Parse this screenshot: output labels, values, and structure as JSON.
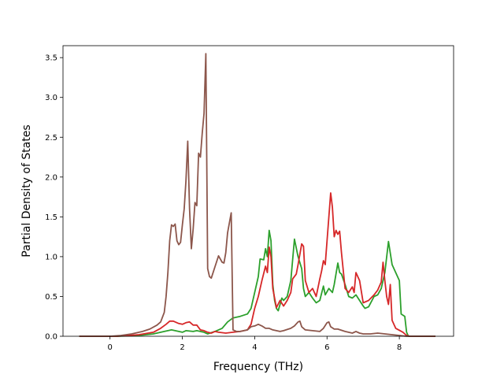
{
  "chart_data": {
    "type": "line",
    "title": "",
    "xlabel": "Frequency (THz)",
    "ylabel": "Partial Density of States",
    "xlim": [
      -1.3,
      9.5
    ],
    "ylim": [
      0,
      3.65
    ],
    "xticks": [
      0,
      2,
      4,
      6,
      8
    ],
    "xtick_labels": [
      "0",
      "2",
      "4",
      "6",
      "8"
    ],
    "yticks": [
      0.0,
      0.5,
      1.0,
      1.5,
      2.0,
      2.5,
      3.0,
      3.5
    ],
    "ytick_labels": [
      "0.0",
      "0.5",
      "1.0",
      "1.5",
      "2.0",
      "2.5",
      "3.0",
      "3.5"
    ],
    "grid": false,
    "legend": "none",
    "series": [
      {
        "color": "#2ca02c",
        "points": [
          [
            -0.85,
            0
          ],
          [
            0.2,
            0
          ],
          [
            0.8,
            0.01
          ],
          [
            1.2,
            0.03
          ],
          [
            1.5,
            0.06
          ],
          [
            1.7,
            0.08
          ],
          [
            1.9,
            0.06
          ],
          [
            2.0,
            0.05
          ],
          [
            2.1,
            0.07
          ],
          [
            2.3,
            0.06
          ],
          [
            2.4,
            0.07
          ],
          [
            2.6,
            0.05
          ],
          [
            2.7,
            0.03
          ],
          [
            2.9,
            0.06
          ],
          [
            3.0,
            0.08
          ],
          [
            3.1,
            0.1
          ],
          [
            3.25,
            0.18
          ],
          [
            3.4,
            0.23
          ],
          [
            3.6,
            0.25
          ],
          [
            3.8,
            0.28
          ],
          [
            3.9,
            0.35
          ],
          [
            4.0,
            0.55
          ],
          [
            4.1,
            0.75
          ],
          [
            4.15,
            0.97
          ],
          [
            4.25,
            0.96
          ],
          [
            4.3,
            1.1
          ],
          [
            4.35,
            1.0
          ],
          [
            4.4,
            1.33
          ],
          [
            4.45,
            1.2
          ],
          [
            4.5,
            0.65
          ],
          [
            4.55,
            0.45
          ],
          [
            4.6,
            0.35
          ],
          [
            4.65,
            0.32
          ],
          [
            4.7,
            0.4
          ],
          [
            4.75,
            0.48
          ],
          [
            4.8,
            0.45
          ],
          [
            4.9,
            0.5
          ],
          [
            5.0,
            0.7
          ],
          [
            5.1,
            1.22
          ],
          [
            5.2,
            1.0
          ],
          [
            5.3,
            0.85
          ],
          [
            5.35,
            0.6
          ],
          [
            5.4,
            0.5
          ],
          [
            5.5,
            0.55
          ],
          [
            5.6,
            0.48
          ],
          [
            5.7,
            0.42
          ],
          [
            5.8,
            0.45
          ],
          [
            5.9,
            0.63
          ],
          [
            5.95,
            0.52
          ],
          [
            6.05,
            0.6
          ],
          [
            6.15,
            0.55
          ],
          [
            6.2,
            0.65
          ],
          [
            6.3,
            0.92
          ],
          [
            6.35,
            0.8
          ],
          [
            6.4,
            0.78
          ],
          [
            6.5,
            0.65
          ],
          [
            6.6,
            0.5
          ],
          [
            6.7,
            0.48
          ],
          [
            6.8,
            0.52
          ],
          [
            6.9,
            0.45
          ],
          [
            7.0,
            0.38
          ],
          [
            7.05,
            0.35
          ],
          [
            7.15,
            0.37
          ],
          [
            7.3,
            0.5
          ],
          [
            7.4,
            0.52
          ],
          [
            7.5,
            0.6
          ],
          [
            7.6,
            0.8
          ],
          [
            7.7,
            1.19
          ],
          [
            7.8,
            0.9
          ],
          [
            7.9,
            0.8
          ],
          [
            8.0,
            0.7
          ],
          [
            8.05,
            0.28
          ],
          [
            8.15,
            0.25
          ],
          [
            8.2,
            0.05
          ],
          [
            8.25,
            0
          ],
          [
            9.0,
            0
          ]
        ]
      },
      {
        "color": "#d62728",
        "points": [
          [
            -0.85,
            0
          ],
          [
            0.2,
            0
          ],
          [
            0.8,
            0.02
          ],
          [
            1.2,
            0.05
          ],
          [
            1.4,
            0.1
          ],
          [
            1.55,
            0.15
          ],
          [
            1.65,
            0.19
          ],
          [
            1.75,
            0.19
          ],
          [
            1.9,
            0.16
          ],
          [
            2.0,
            0.15
          ],
          [
            2.1,
            0.17
          ],
          [
            2.2,
            0.18
          ],
          [
            2.3,
            0.14
          ],
          [
            2.4,
            0.14
          ],
          [
            2.5,
            0.08
          ],
          [
            2.6,
            0.07
          ],
          [
            2.7,
            0.05
          ],
          [
            2.8,
            0.04
          ],
          [
            2.9,
            0.06
          ],
          [
            3.0,
            0.05
          ],
          [
            3.2,
            0.04
          ],
          [
            3.4,
            0.05
          ],
          [
            3.6,
            0.06
          ],
          [
            3.8,
            0.08
          ],
          [
            3.9,
            0.15
          ],
          [
            4.0,
            0.35
          ],
          [
            4.1,
            0.5
          ],
          [
            4.2,
            0.7
          ],
          [
            4.3,
            0.88
          ],
          [
            4.35,
            0.8
          ],
          [
            4.4,
            1.12
          ],
          [
            4.45,
            1.0
          ],
          [
            4.5,
            0.6
          ],
          [
            4.6,
            0.36
          ],
          [
            4.7,
            0.45
          ],
          [
            4.8,
            0.38
          ],
          [
            4.9,
            0.45
          ],
          [
            5.0,
            0.55
          ],
          [
            5.05,
            0.72
          ],
          [
            5.15,
            0.78
          ],
          [
            5.2,
            0.9
          ],
          [
            5.3,
            1.16
          ],
          [
            5.35,
            1.13
          ],
          [
            5.4,
            0.7
          ],
          [
            5.5,
            0.55
          ],
          [
            5.6,
            0.6
          ],
          [
            5.7,
            0.5
          ],
          [
            5.8,
            0.72
          ],
          [
            5.85,
            0.82
          ],
          [
            5.9,
            0.95
          ],
          [
            5.95,
            0.9
          ],
          [
            6.0,
            1.2
          ],
          [
            6.05,
            1.5
          ],
          [
            6.1,
            1.8
          ],
          [
            6.15,
            1.62
          ],
          [
            6.2,
            1.25
          ],
          [
            6.25,
            1.33
          ],
          [
            6.3,
            1.28
          ],
          [
            6.35,
            1.32
          ],
          [
            6.4,
            1.05
          ],
          [
            6.5,
            0.6
          ],
          [
            6.6,
            0.55
          ],
          [
            6.7,
            0.62
          ],
          [
            6.75,
            0.55
          ],
          [
            6.8,
            0.8
          ],
          [
            6.9,
            0.7
          ],
          [
            7.0,
            0.42
          ],
          [
            7.15,
            0.45
          ],
          [
            7.3,
            0.52
          ],
          [
            7.4,
            0.58
          ],
          [
            7.5,
            0.68
          ],
          [
            7.55,
            0.93
          ],
          [
            7.6,
            0.7
          ],
          [
            7.65,
            0.5
          ],
          [
            7.7,
            0.4
          ],
          [
            7.75,
            0.65
          ],
          [
            7.8,
            0.2
          ],
          [
            7.9,
            0.1
          ],
          [
            8.1,
            0.05
          ],
          [
            8.2,
            0.01
          ],
          [
            8.3,
            0
          ],
          [
            9.0,
            0
          ]
        ]
      },
      {
        "color": "#8c564b",
        "points": [
          [
            -0.85,
            0
          ],
          [
            0.0,
            0
          ],
          [
            0.3,
            0.01
          ],
          [
            0.6,
            0.03
          ],
          [
            0.9,
            0.06
          ],
          [
            1.1,
            0.09
          ],
          [
            1.3,
            0.14
          ],
          [
            1.4,
            0.18
          ],
          [
            1.5,
            0.3
          ],
          [
            1.55,
            0.5
          ],
          [
            1.6,
            0.8
          ],
          [
            1.65,
            1.2
          ],
          [
            1.7,
            1.4
          ],
          [
            1.75,
            1.38
          ],
          [
            1.8,
            1.41
          ],
          [
            1.85,
            1.2
          ],
          [
            1.9,
            1.15
          ],
          [
            1.95,
            1.18
          ],
          [
            2.0,
            1.4
          ],
          [
            2.05,
            1.6
          ],
          [
            2.1,
            1.95
          ],
          [
            2.15,
            2.45
          ],
          [
            2.2,
            1.6
          ],
          [
            2.25,
            1.1
          ],
          [
            2.3,
            1.35
          ],
          [
            2.35,
            1.68
          ],
          [
            2.4,
            1.64
          ],
          [
            2.45,
            2.3
          ],
          [
            2.5,
            2.25
          ],
          [
            2.55,
            2.55
          ],
          [
            2.6,
            2.8
          ],
          [
            2.65,
            3.55
          ],
          [
            2.7,
            0.85
          ],
          [
            2.75,
            0.75
          ],
          [
            2.8,
            0.73
          ],
          [
            2.9,
            0.87
          ],
          [
            3.0,
            1.01
          ],
          [
            3.1,
            0.93
          ],
          [
            3.15,
            0.92
          ],
          [
            3.2,
            1.05
          ],
          [
            3.25,
            1.3
          ],
          [
            3.35,
            1.55
          ],
          [
            3.4,
            0.08
          ],
          [
            3.5,
            0.06
          ],
          [
            3.6,
            0.06
          ],
          [
            3.7,
            0.07
          ],
          [
            3.8,
            0.08
          ],
          [
            3.9,
            0.12
          ],
          [
            4.0,
            0.13
          ],
          [
            4.1,
            0.15
          ],
          [
            4.2,
            0.13
          ],
          [
            4.3,
            0.1
          ],
          [
            4.4,
            0.1
          ],
          [
            4.5,
            0.08
          ],
          [
            4.6,
            0.07
          ],
          [
            4.7,
            0.06
          ],
          [
            4.8,
            0.07
          ],
          [
            5.0,
            0.1
          ],
          [
            5.1,
            0.13
          ],
          [
            5.2,
            0.18
          ],
          [
            5.25,
            0.19
          ],
          [
            5.3,
            0.12
          ],
          [
            5.4,
            0.08
          ],
          [
            5.6,
            0.07
          ],
          [
            5.8,
            0.06
          ],
          [
            5.9,
            0.1
          ],
          [
            6.0,
            0.17
          ],
          [
            6.05,
            0.18
          ],
          [
            6.1,
            0.12
          ],
          [
            6.2,
            0.09
          ],
          [
            6.3,
            0.09
          ],
          [
            6.5,
            0.06
          ],
          [
            6.7,
            0.04
          ],
          [
            6.8,
            0.06
          ],
          [
            6.9,
            0.04
          ],
          [
            7.0,
            0.03
          ],
          [
            7.2,
            0.03
          ],
          [
            7.4,
            0.04
          ],
          [
            7.6,
            0.03
          ],
          [
            7.8,
            0.02
          ],
          [
            8.0,
            0.01
          ],
          [
            8.2,
            0
          ],
          [
            9.0,
            0
          ]
        ]
      }
    ]
  }
}
